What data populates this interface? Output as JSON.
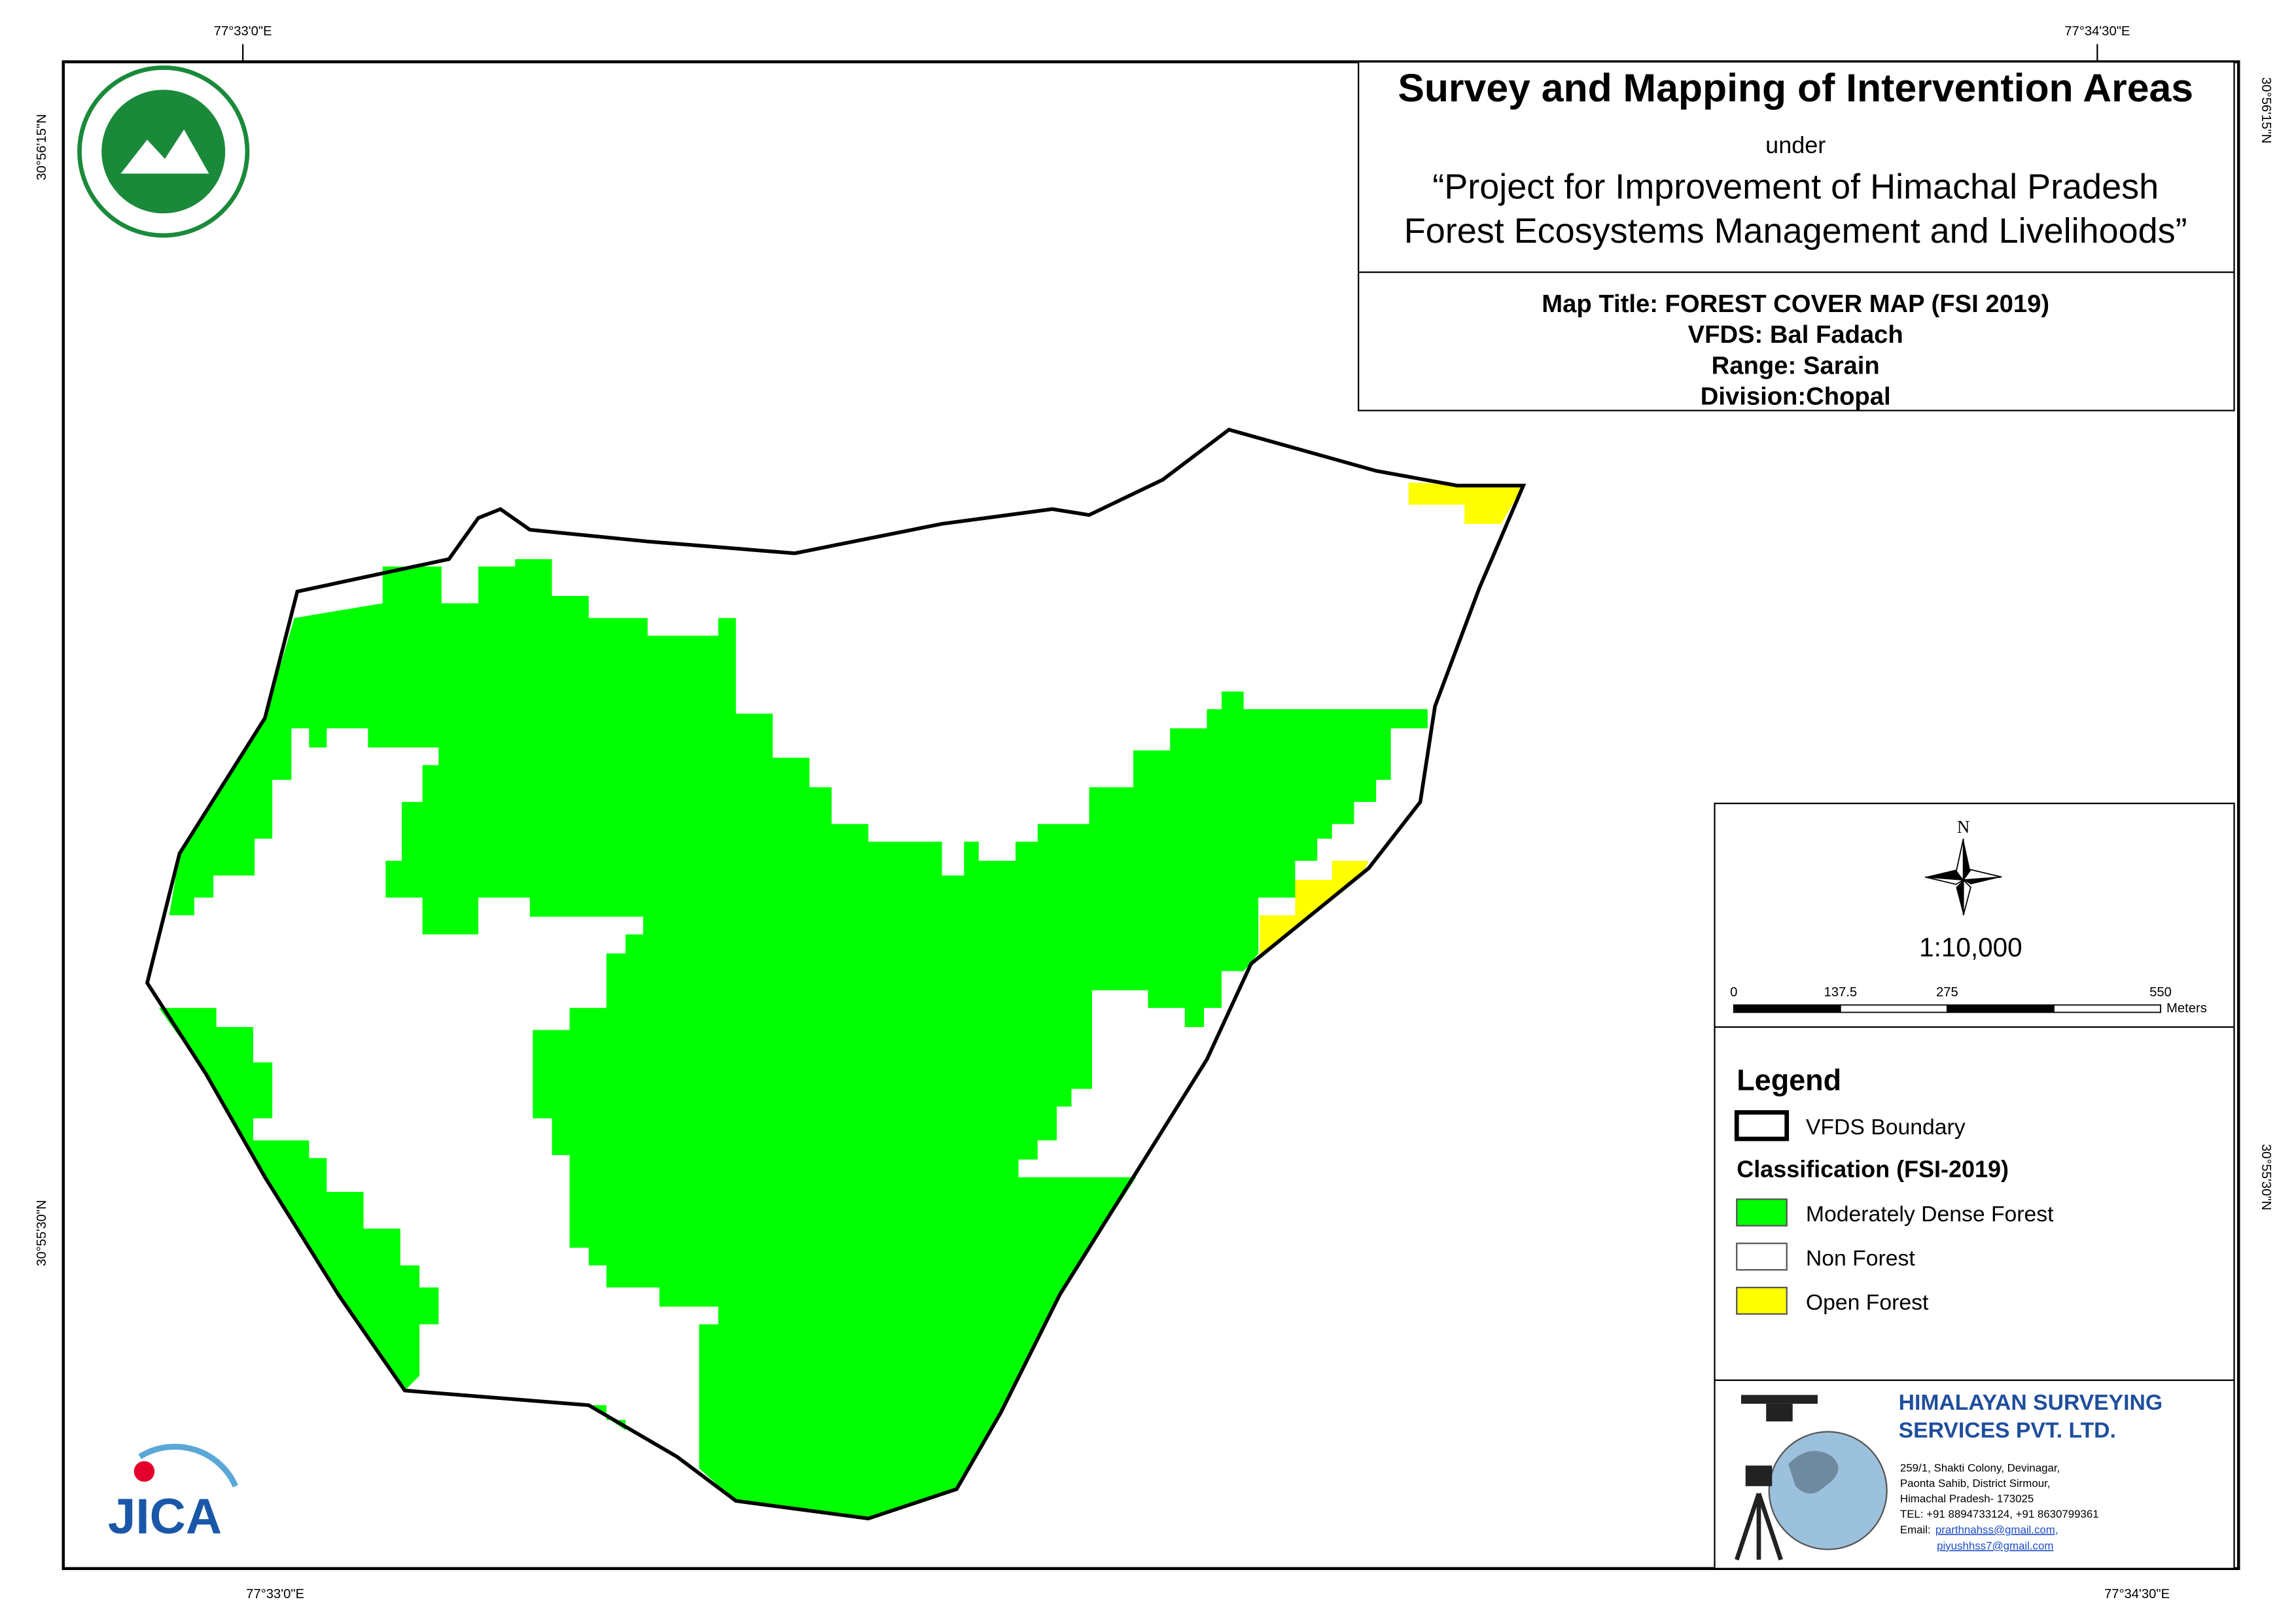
{
  "header": {
    "title": "Survey and Mapping of Intervention Areas",
    "under": "under",
    "project_line1": "“Project for Improvement of Himachal Pradesh",
    "project_line2": "Forest Ecosystems Management and Livelihoods”"
  },
  "info": {
    "map_title": "Map Title: FOREST COVER MAP (FSI 2019)",
    "vfds": "VFDS: Bal Fadach",
    "range": "Range: Sarain",
    "division": "Division:Chopal"
  },
  "graticule": {
    "top": [
      "77°33'0\"E",
      "77°34'30\"E"
    ],
    "bottom": [
      "77°33'0\"E",
      "77°34'30\"E"
    ],
    "left": [
      "30°56'15\"N",
      "30°55'30\"N"
    ],
    "right": [
      "30°56'15\"N",
      "30°55'30\"N"
    ]
  },
  "north": "N",
  "scale": {
    "ratio": "1:10,000",
    "ticks": [
      0,
      137.5,
      275,
      550
    ],
    "unit": "Meters"
  },
  "legend": {
    "title": "Legend",
    "boundary": "VFDS Boundary",
    "classification": "Classification (FSI-2019)",
    "items": [
      {
        "label": "Moderately Dense Forest",
        "color": "#00ff00"
      },
      {
        "label": "Non Forest",
        "color": "#ffffff"
      },
      {
        "label": "Open Forest",
        "color": "#ffff00"
      }
    ]
  },
  "company": {
    "name1": "HIMALAYAN SURVEYING",
    "name2": "SERVICES PVT. LTD.",
    "address": [
      "259/1, Shakti Colony, Devinagar,",
      "Paonta Sahib, District Sirmour,",
      "Himachal Pradesh- 173025",
      "TEL: +91 8894733124, +91 8630799361"
    ],
    "email_label": "Email:",
    "emails": [
      "prarthnahss@gmail.com,",
      "piyushhss7@gmail.com"
    ]
  },
  "logo": "JICA"
}
